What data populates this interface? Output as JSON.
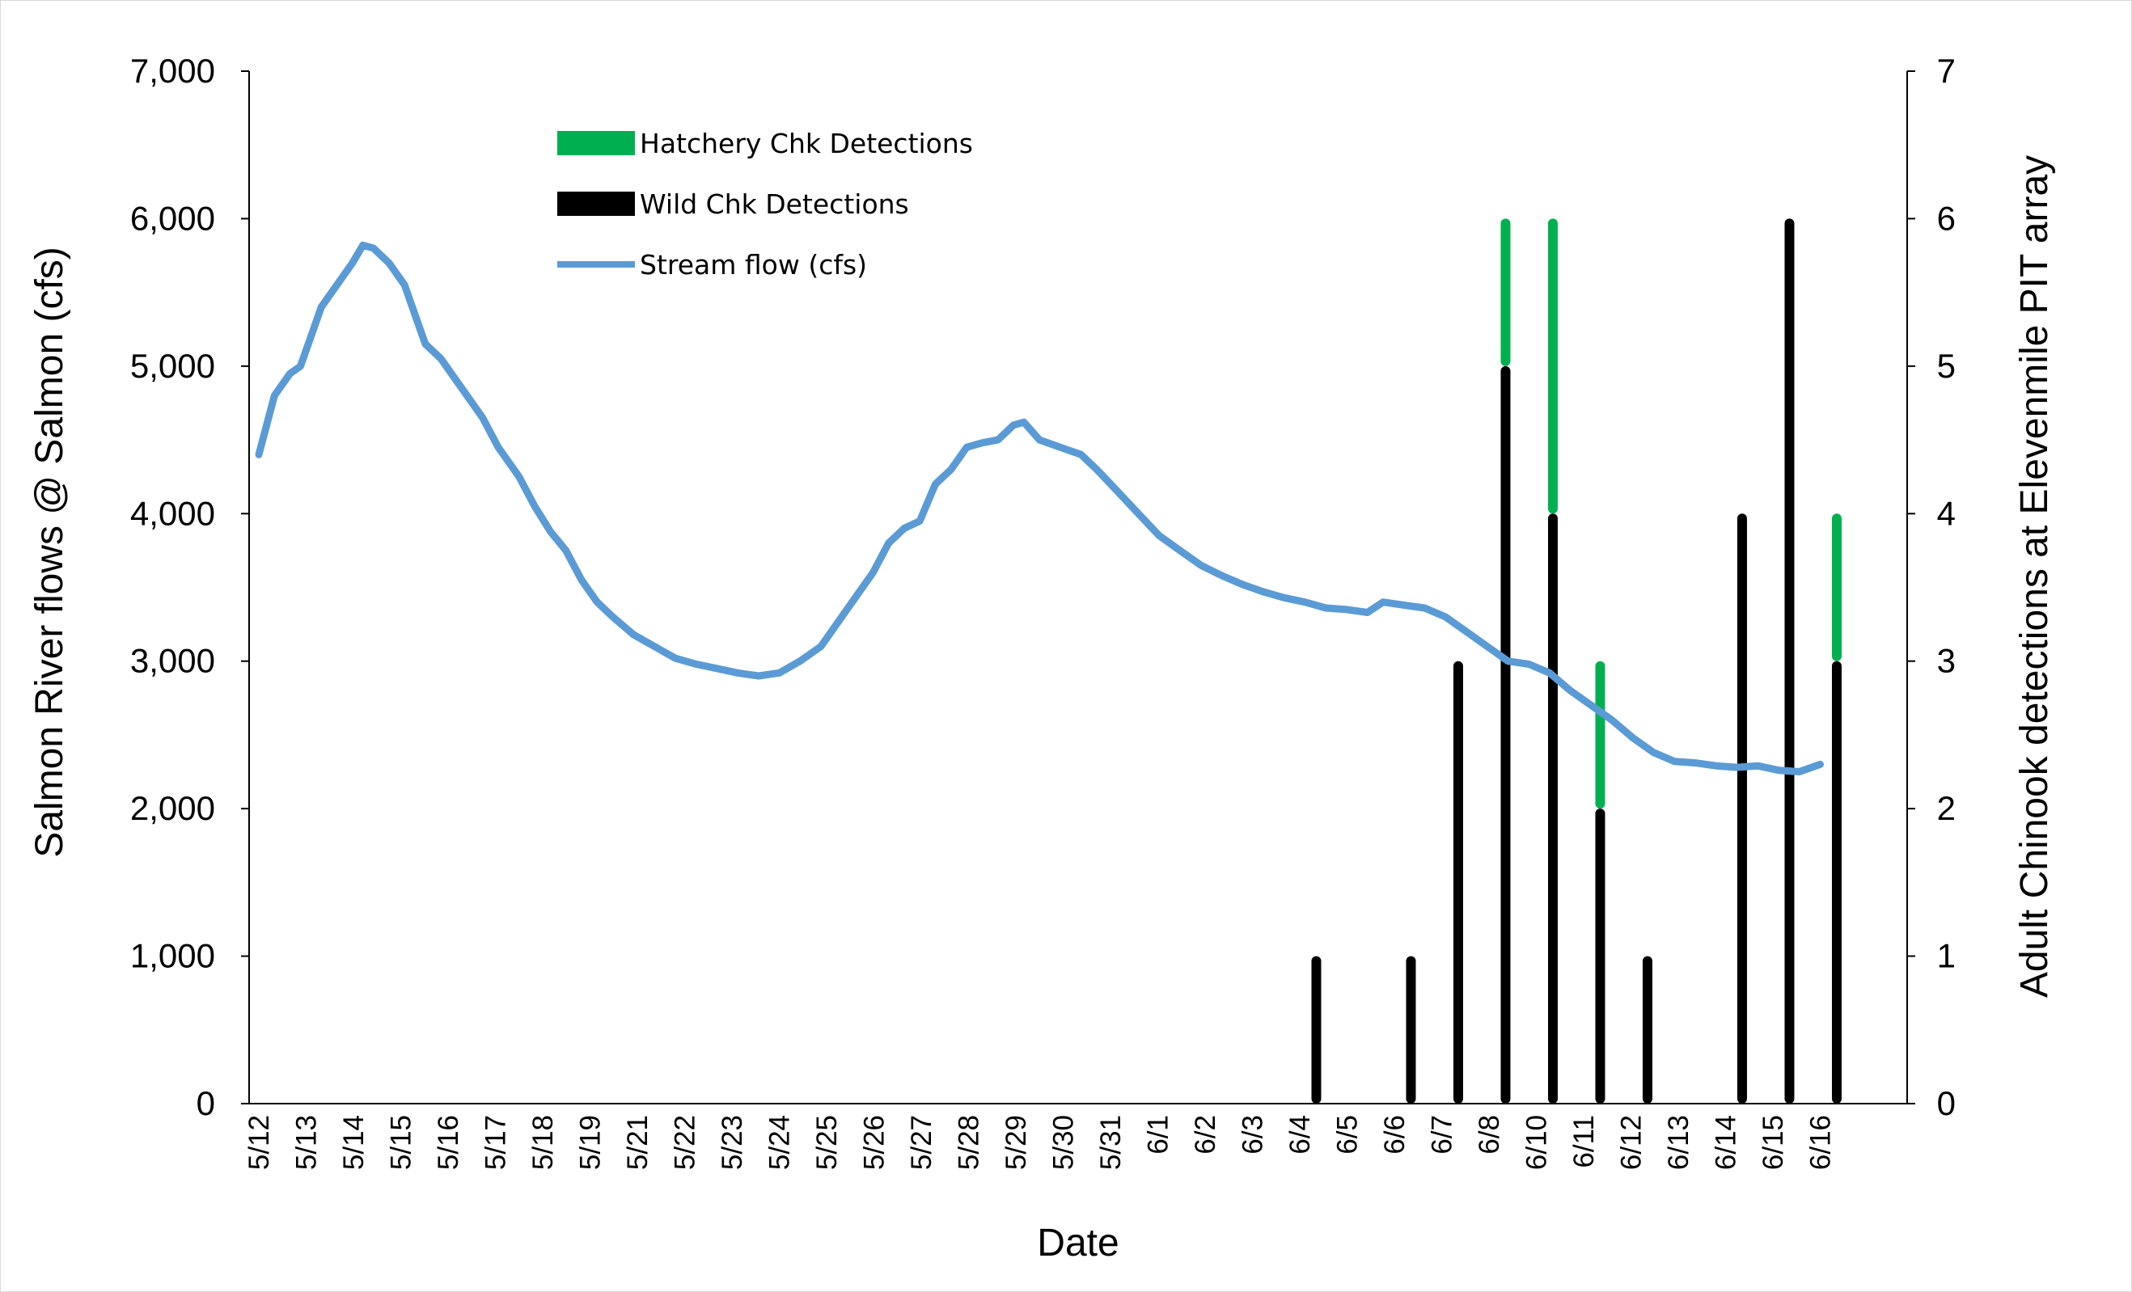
{
  "chart_data": {
    "type": "bar",
    "xlabel": "Date",
    "y_left_label": "Salmon River flows @ Salmon (cfs)",
    "y_right_label": "Adult Chinook detections at Elevenmile PIT array",
    "y_left_lim": [
      0,
      7000
    ],
    "y_right_lim": [
      0,
      7
    ],
    "y_left_ticks": [
      "0",
      "1,000",
      "2,000",
      "3,000",
      "4,000",
      "5,000",
      "6,000",
      "7,000"
    ],
    "y_right_ticks": [
      "0",
      "1",
      "2",
      "3",
      "4",
      "5",
      "6",
      "7"
    ],
    "x_tick_labels": [
      "5/12",
      "5/13",
      "5/14",
      "5/15",
      "5/16",
      "5/17",
      "5/18",
      "5/19",
      "5/21",
      "5/22",
      "5/23",
      "5/24",
      "5/25",
      "5/26",
      "5/27",
      "5/28",
      "5/29",
      "5/30",
      "5/31",
      "6/1",
      "6/2",
      "6/3",
      "6/4",
      "6/5",
      "6/6",
      "6/7",
      "6/8",
      "6/10",
      "6/11",
      "6/12",
      "6/13",
      "6/14",
      "6/15",
      "6/16"
    ],
    "grid": false,
    "legend_position": "top-center",
    "legend": [
      {
        "label": "Hatchery Chk Detections",
        "color": "#00b050",
        "kind": "bar"
      },
      {
        "label": "Wild Chk Detections",
        "color": "#000000",
        "kind": "bar"
      },
      {
        "label": "Stream flow (cfs)",
        "color": "#5b9bd5",
        "kind": "line"
      }
    ],
    "series": [
      {
        "name": "Stream flow (cfs)",
        "axis": "left",
        "points": [
          [
            0,
            4400
          ],
          [
            0.3,
            4800
          ],
          [
            0.6,
            4950
          ],
          [
            0.8,
            5000
          ],
          [
            1.0,
            5200
          ],
          [
            1.2,
            5400
          ],
          [
            1.5,
            5550
          ],
          [
            1.8,
            5700
          ],
          [
            2.0,
            5820
          ],
          [
            2.2,
            5800
          ],
          [
            2.5,
            5700
          ],
          [
            2.8,
            5550
          ],
          [
            3.0,
            5350
          ],
          [
            3.2,
            5150
          ],
          [
            3.5,
            5050
          ],
          [
            3.8,
            4900
          ],
          [
            4.0,
            4800
          ],
          [
            4.3,
            4650
          ],
          [
            4.6,
            4450
          ],
          [
            5.0,
            4250
          ],
          [
            5.3,
            4050
          ],
          [
            5.6,
            3880
          ],
          [
            5.9,
            3750
          ],
          [
            6.2,
            3550
          ],
          [
            6.5,
            3400
          ],
          [
            6.8,
            3300
          ],
          [
            7.2,
            3180
          ],
          [
            7.6,
            3100
          ],
          [
            8.0,
            3020
          ],
          [
            8.4,
            2980
          ],
          [
            8.8,
            2950
          ],
          [
            9.2,
            2920
          ],
          [
            9.6,
            2900
          ],
          [
            10.0,
            2920
          ],
          [
            10.4,
            3000
          ],
          [
            10.8,
            3100
          ],
          [
            11.2,
            3300
          ],
          [
            11.5,
            3450
          ],
          [
            11.8,
            3600
          ],
          [
            12.1,
            3800
          ],
          [
            12.4,
            3900
          ],
          [
            12.7,
            3950
          ],
          [
            13.0,
            4200
          ],
          [
            13.3,
            4300
          ],
          [
            13.6,
            4450
          ],
          [
            13.9,
            4480
          ],
          [
            14.2,
            4500
          ],
          [
            14.5,
            4600
          ],
          [
            14.7,
            4620
          ],
          [
            15.0,
            4500
          ],
          [
            15.4,
            4450
          ],
          [
            15.8,
            4400
          ],
          [
            16.1,
            4300
          ],
          [
            16.5,
            4150
          ],
          [
            16.9,
            4000
          ],
          [
            17.3,
            3850
          ],
          [
            17.7,
            3750
          ],
          [
            18.1,
            3650
          ],
          [
            18.5,
            3580
          ],
          [
            18.9,
            3520
          ],
          [
            19.3,
            3470
          ],
          [
            19.7,
            3430
          ],
          [
            20.1,
            3400
          ],
          [
            20.5,
            3360
          ],
          [
            20.9,
            3350
          ],
          [
            21.3,
            3330
          ],
          [
            21.6,
            3400
          ],
          [
            22.0,
            3380
          ],
          [
            22.4,
            3360
          ],
          [
            22.8,
            3300
          ],
          [
            23.2,
            3200
          ],
          [
            23.6,
            3100
          ],
          [
            24.0,
            3000
          ],
          [
            24.4,
            2980
          ],
          [
            24.8,
            2920
          ],
          [
            25.2,
            2800
          ],
          [
            25.6,
            2700
          ],
          [
            26.0,
            2600
          ],
          [
            26.4,
            2480
          ],
          [
            26.8,
            2380
          ],
          [
            27.2,
            2320
          ],
          [
            27.6,
            2310
          ],
          [
            28.0,
            2290
          ],
          [
            28.4,
            2280
          ],
          [
            28.8,
            2290
          ],
          [
            29.2,
            2260
          ],
          [
            29.6,
            2250
          ],
          [
            30.0,
            2300
          ]
        ]
      },
      {
        "name": "Wild Chk Detections",
        "axis": "right",
        "bars": [
          {
            "date": "6/4",
            "value": 1
          },
          {
            "date": "6/6",
            "value": 1
          },
          {
            "date": "6/7",
            "value": 3
          },
          {
            "date": "6/8",
            "value": 5
          },
          {
            "date": "6/10",
            "value": 4
          },
          {
            "date": "6/11",
            "value": 2
          },
          {
            "date": "6/12",
            "value": 1
          },
          {
            "date": "6/14",
            "value": 4
          },
          {
            "date": "6/15",
            "value": 6
          },
          {
            "date": "6/16",
            "value": 3
          }
        ]
      },
      {
        "name": "Hatchery Chk Detections",
        "axis": "right",
        "bars": [
          {
            "date": "6/8",
            "value": 1
          },
          {
            "date": "6/10",
            "value": 2
          },
          {
            "date": "6/11",
            "value": 1
          },
          {
            "date": "6/16",
            "value": 1
          }
        ]
      }
    ]
  }
}
